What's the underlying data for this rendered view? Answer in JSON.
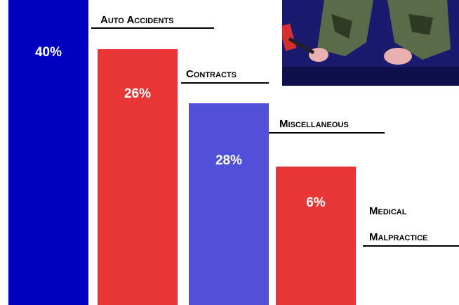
{
  "bars": [
    {
      "label": "Auto Accidents",
      "percent": "40%"
    },
    {
      "label": "Contracts",
      "percent": "26%"
    },
    {
      "label": "Miscellaneous",
      "percent": "28%"
    },
    {
      "label": "Medical Malpractice",
      "percent": "6%"
    }
  ],
  "label_lines": {
    "medical": "Medical",
    "malpractice": "Malpractice"
  }
}
